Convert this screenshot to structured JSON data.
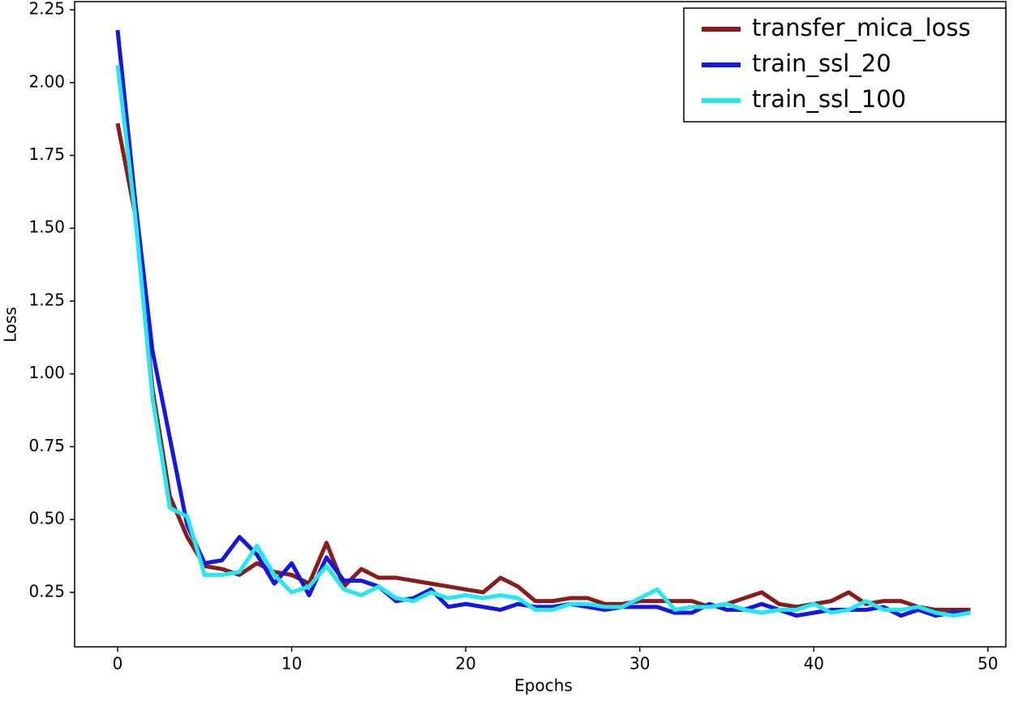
{
  "chart_data": {
    "type": "line",
    "x_label": "Epochs",
    "y_label": "Loss",
    "x": [
      0,
      1,
      2,
      3,
      4,
      5,
      6,
      7,
      8,
      9,
      10,
      11,
      12,
      13,
      14,
      15,
      16,
      17,
      18,
      19,
      20,
      21,
      22,
      23,
      24,
      25,
      26,
      27,
      28,
      29,
      30,
      31,
      32,
      33,
      34,
      35,
      36,
      37,
      38,
      39,
      40,
      41,
      42,
      43,
      44,
      45,
      46,
      47,
      48,
      49
    ],
    "series": [
      {
        "name": "transfer_mica_loss",
        "color": "#8b1a1a",
        "values": [
          1.86,
          1.55,
          0.95,
          0.58,
          0.44,
          0.34,
          0.33,
          0.31,
          0.35,
          0.32,
          0.31,
          0.28,
          0.42,
          0.27,
          0.33,
          0.3,
          0.3,
          0.29,
          0.28,
          0.27,
          0.26,
          0.25,
          0.3,
          0.27,
          0.22,
          0.22,
          0.23,
          0.23,
          0.21,
          0.21,
          0.22,
          0.22,
          0.22,
          0.22,
          0.2,
          0.21,
          0.23,
          0.25,
          0.21,
          0.2,
          0.21,
          0.22,
          0.25,
          0.21,
          0.22,
          0.22,
          0.2,
          0.19,
          0.19,
          0.19
        ]
      },
      {
        "name": "train_ssl_20",
        "color": "#1515e6",
        "values": [
          2.18,
          1.6,
          1.08,
          0.78,
          0.48,
          0.35,
          0.36,
          0.44,
          0.38,
          0.28,
          0.35,
          0.24,
          0.37,
          0.29,
          0.29,
          0.27,
          0.22,
          0.23,
          0.26,
          0.2,
          0.21,
          0.2,
          0.19,
          0.21,
          0.2,
          0.2,
          0.21,
          0.2,
          0.19,
          0.2,
          0.2,
          0.2,
          0.18,
          0.18,
          0.21,
          0.19,
          0.19,
          0.21,
          0.19,
          0.17,
          0.18,
          0.19,
          0.19,
          0.19,
          0.2,
          0.17,
          0.19,
          0.17,
          0.18,
          0.18
        ]
      },
      {
        "name": "train_ssl_100",
        "color": "#22e8f0",
        "values": [
          2.06,
          1.55,
          0.92,
          0.54,
          0.51,
          0.31,
          0.31,
          0.32,
          0.41,
          0.31,
          0.25,
          0.27,
          0.34,
          0.26,
          0.24,
          0.27,
          0.23,
          0.22,
          0.25,
          0.23,
          0.24,
          0.23,
          0.24,
          0.23,
          0.19,
          0.19,
          0.21,
          0.21,
          0.2,
          0.2,
          0.23,
          0.26,
          0.19,
          0.2,
          0.2,
          0.21,
          0.19,
          0.18,
          0.19,
          0.19,
          0.21,
          0.18,
          0.19,
          0.22,
          0.19,
          0.19,
          0.2,
          0.18,
          0.17,
          0.18
        ]
      }
    ],
    "xlim": [
      -2.47,
      51.03
    ],
    "ylim": [
      0.063,
      2.278
    ],
    "xticks": [
      0,
      10,
      20,
      30,
      40,
      50
    ],
    "yticks": [
      0.25,
      {
        "value": 0.5,
        "label": "0.50"
      },
      0.75,
      {
        "value": 1,
        "label": "1.00"
      },
      1.25,
      {
        "value": 1.5,
        "label": "1.50"
      },
      1.75,
      {
        "value": 2,
        "label": "2.00"
      },
      2.25
    ],
    "grid": false,
    "legend": "upper right"
  }
}
